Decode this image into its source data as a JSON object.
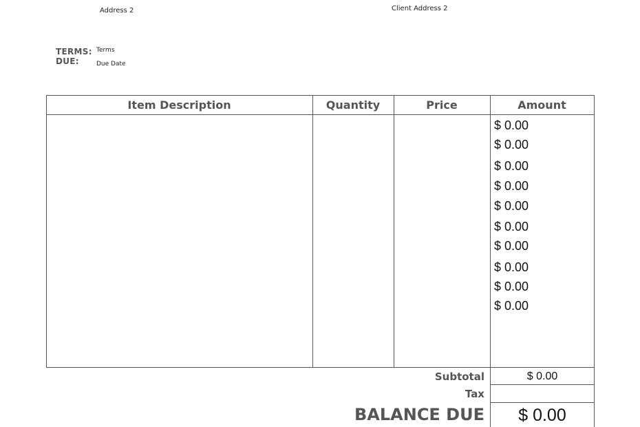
{
  "header": {
    "address2": "Address 2",
    "client_address2": "Client Address 2",
    "terms_label": "TERMS:",
    "terms_value": "Terms",
    "due_label": "DUE:",
    "due_value": "Due Date"
  },
  "table": {
    "columns": [
      "Item Description",
      "Quantity",
      "Price",
      "Amount"
    ],
    "amounts": [
      "$ 0.00",
      "$ 0.00",
      "$ 0.00",
      "$ 0.00",
      "$ 0.00",
      "$ 0.00",
      "$ 0.00",
      "$ 0.00",
      "$ 0.00",
      "$ 0.00"
    ]
  },
  "totals": {
    "subtotal_label": "Subtotal",
    "subtotal_value": "$ 0.00",
    "tax_label": "Tax",
    "tax_value": "",
    "balance_label": "BALANCE DUE",
    "balance_value": "$ 0.00"
  }
}
